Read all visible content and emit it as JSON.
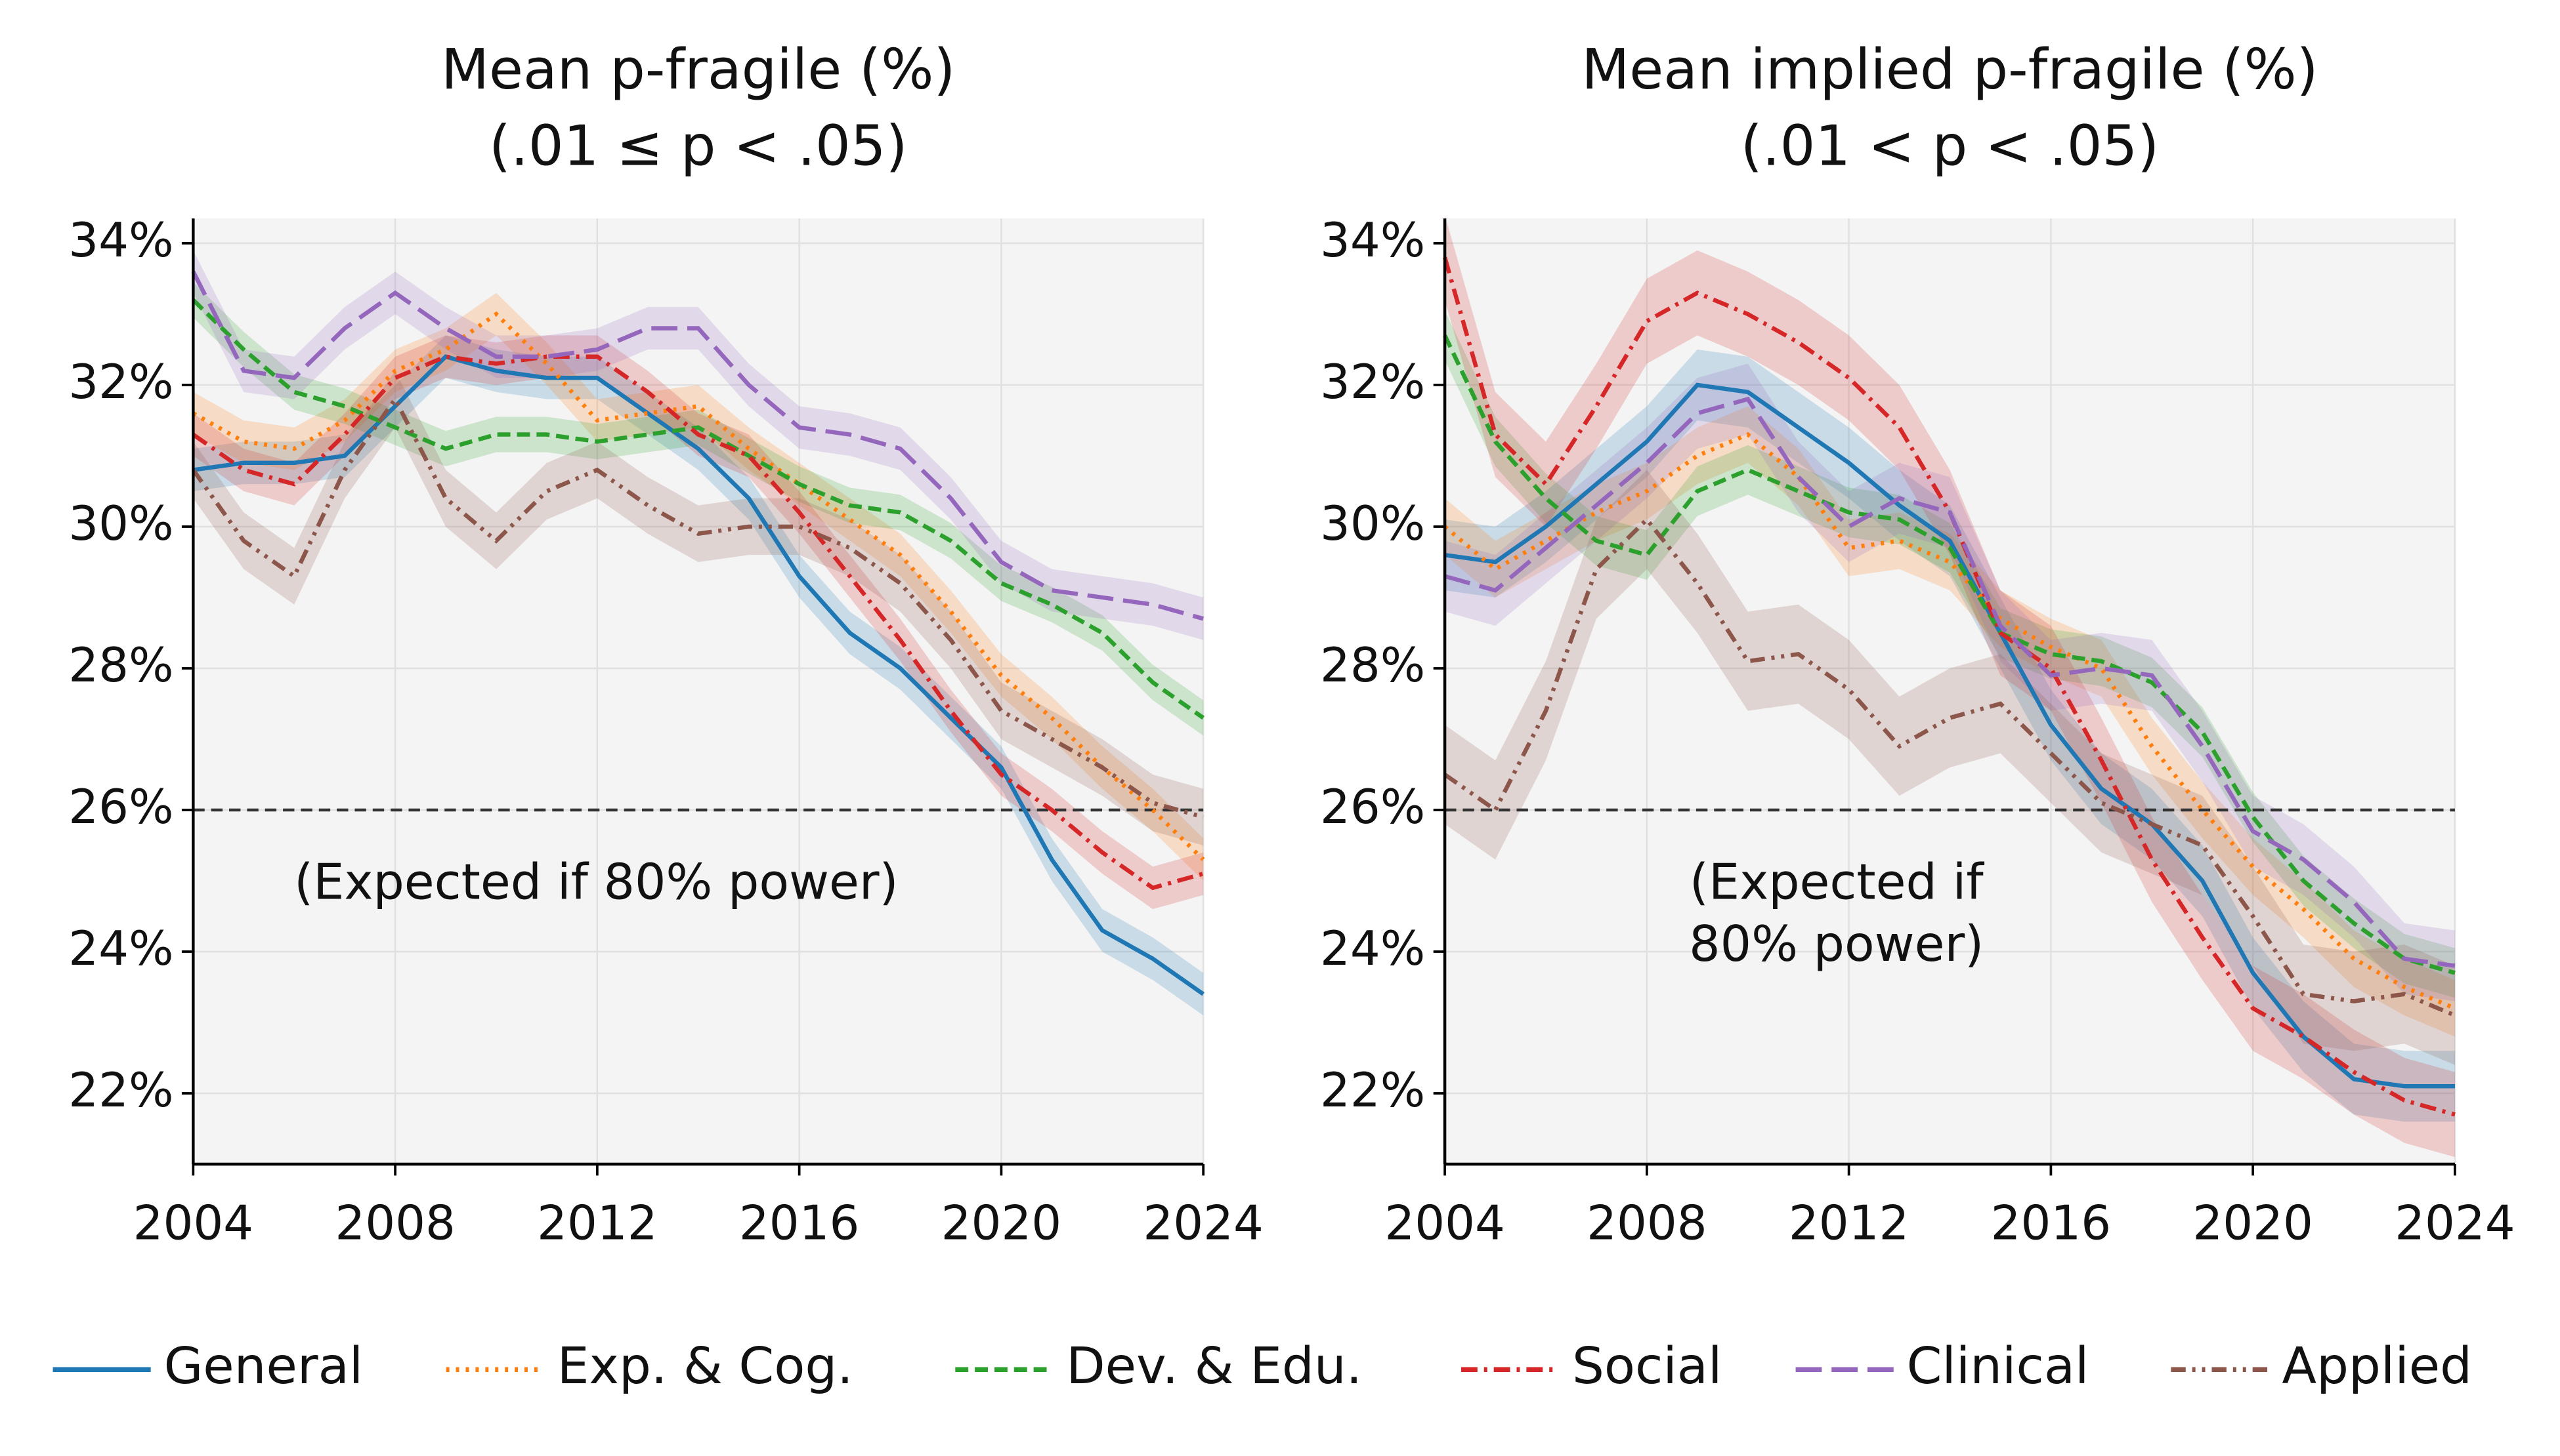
{
  "chart_data": [
    {
      "type": "line",
      "title": "Mean p-fragile (%)",
      "subtitle": "(.01 ≤ p < .05)",
      "x": [
        2004,
        2005,
        2006,
        2007,
        2008,
        2009,
        2010,
        2011,
        2012,
        2013,
        2014,
        2015,
        2016,
        2017,
        2018,
        2019,
        2020,
        2021,
        2022,
        2023,
        2024
      ],
      "xlim": [
        2004,
        2024
      ],
      "xticks": [
        2004,
        2008,
        2012,
        2016,
        2020,
        2024
      ],
      "ylim": [
        21,
        34.35
      ],
      "yticks": [
        {
          "value": 22,
          "label": "22%"
        },
        {
          "value": 24,
          "label": "24%"
        },
        {
          "value": 26,
          "label": "26%"
        },
        {
          "value": 28,
          "label": "28%"
        },
        {
          "value": 30,
          "label": "30%"
        },
        {
          "value": 32,
          "label": "32%"
        },
        {
          "value": 34,
          "label": "34%"
        }
      ],
      "grid": true,
      "hline": 26,
      "annotation": [
        "(Expected if 80% power)"
      ],
      "series": [
        {
          "name": "General",
          "color": "#1f77b4",
          "linestyle": "solid",
          "ci": 0.3,
          "values": [
            30.8,
            30.9,
            30.9,
            31.0,
            31.7,
            32.4,
            32.2,
            32.1,
            32.1,
            31.6,
            31.1,
            30.4,
            29.3,
            28.5,
            28.0,
            27.3,
            26.6,
            25.3,
            24.3,
            23.9,
            23.4
          ]
        },
        {
          "name": "Exp. & Cog.",
          "color": "#ff7f0e",
          "linestyle": "dotted",
          "ci": 0.3,
          "values": [
            31.6,
            31.2,
            31.1,
            31.5,
            32.2,
            32.5,
            33.0,
            32.3,
            31.5,
            31.6,
            31.7,
            31.1,
            30.6,
            30.1,
            29.6,
            28.8,
            27.9,
            27.3,
            26.6,
            26.0,
            25.3
          ]
        },
        {
          "name": "Dev. & Edu.",
          "color": "#2ca02c",
          "linestyle": "dashed",
          "ci": 0.25,
          "values": [
            33.2,
            32.5,
            31.9,
            31.7,
            31.4,
            31.1,
            31.3,
            31.3,
            31.2,
            31.3,
            31.4,
            31.0,
            30.6,
            30.3,
            30.2,
            29.8,
            29.2,
            28.9,
            28.5,
            27.8,
            27.3
          ]
        },
        {
          "name": "Social",
          "color": "#d62728",
          "linestyle": "dashdot",
          "ci": 0.3,
          "values": [
            31.3,
            30.8,
            30.6,
            31.3,
            32.1,
            32.4,
            32.3,
            32.4,
            32.4,
            31.9,
            31.3,
            31.0,
            30.2,
            29.3,
            28.4,
            27.4,
            26.5,
            26.0,
            25.4,
            24.9,
            25.1
          ]
        },
        {
          "name": "Clinical",
          "color": "#9467bd",
          "linestyle": "longdash",
          "ci": 0.3,
          "values": [
            33.6,
            32.2,
            32.1,
            32.8,
            33.3,
            32.8,
            32.4,
            32.4,
            32.5,
            32.8,
            32.8,
            32.0,
            31.4,
            31.3,
            31.1,
            30.4,
            29.5,
            29.1,
            29.0,
            28.9,
            28.7
          ]
        },
        {
          "name": "Applied",
          "color": "#8c564b",
          "linestyle": "dashdotdot",
          "ci": 0.4,
          "values": [
            30.8,
            29.8,
            29.3,
            30.8,
            31.8,
            30.4,
            29.8,
            30.5,
            30.8,
            30.3,
            29.9,
            30.0,
            30.0,
            29.7,
            29.2,
            28.4,
            27.4,
            27.0,
            26.6,
            26.1,
            25.9
          ]
        }
      ]
    },
    {
      "type": "line",
      "title": "Mean implied p-fragile (%)",
      "subtitle": "(.01 < p < .05)",
      "x": [
        2004,
        2005,
        2006,
        2007,
        2008,
        2009,
        2010,
        2011,
        2012,
        2013,
        2014,
        2015,
        2016,
        2017,
        2018,
        2019,
        2020,
        2021,
        2022,
        2023,
        2024
      ],
      "xlim": [
        2004,
        2024
      ],
      "xticks": [
        2004,
        2008,
        2012,
        2016,
        2020,
        2024
      ],
      "ylim": [
        21,
        34.35
      ],
      "yticks": [
        {
          "value": 22,
          "label": "22%"
        },
        {
          "value": 24,
          "label": "24%"
        },
        {
          "value": 26,
          "label": "26%"
        },
        {
          "value": 28,
          "label": "28%"
        },
        {
          "value": 30,
          "label": "30%"
        },
        {
          "value": 32,
          "label": "32%"
        },
        {
          "value": 34,
          "label": "34%"
        }
      ],
      "grid": true,
      "hline": 26,
      "annotation": [
        "(Expected if",
        "80% power)"
      ],
      "series": [
        {
          "name": "General",
          "color": "#1f77b4",
          "linestyle": "solid",
          "ci": 0.5,
          "values": [
            29.6,
            29.5,
            30.0,
            30.6,
            31.2,
            32.0,
            31.9,
            31.4,
            30.9,
            30.3,
            29.8,
            28.5,
            27.2,
            26.3,
            25.8,
            25.0,
            23.7,
            22.8,
            22.2,
            22.1,
            22.1
          ]
        },
        {
          "name": "Exp. & Cog.",
          "color": "#ff7f0e",
          "linestyle": "dotted",
          "ci": 0.4,
          "values": [
            30.0,
            29.4,
            29.8,
            30.2,
            30.5,
            31.0,
            31.3,
            30.7,
            29.7,
            29.8,
            29.5,
            28.7,
            28.3,
            28.0,
            26.9,
            26.0,
            25.2,
            24.6,
            23.9,
            23.5,
            23.2
          ]
        },
        {
          "name": "Dev. & Edu.",
          "color": "#2ca02c",
          "linestyle": "dashed",
          "ci": 0.35,
          "values": [
            32.7,
            31.2,
            30.4,
            29.8,
            29.6,
            30.5,
            30.8,
            30.5,
            30.2,
            30.1,
            29.7,
            28.5,
            28.2,
            28.1,
            27.8,
            27.1,
            25.9,
            25.0,
            24.4,
            23.9,
            23.7
          ]
        },
        {
          "name": "Social",
          "color": "#d62728",
          "linestyle": "dashdot",
          "ci": 0.6,
          "values": [
            33.8,
            31.3,
            30.6,
            31.7,
            32.9,
            33.3,
            33.0,
            32.6,
            32.1,
            31.4,
            30.2,
            28.5,
            28.0,
            26.7,
            25.3,
            24.2,
            23.2,
            22.8,
            22.3,
            21.9,
            21.7
          ]
        },
        {
          "name": "Clinical",
          "color": "#9467bd",
          "linestyle": "longdash",
          "ci": 0.5,
          "values": [
            29.3,
            29.1,
            29.7,
            30.3,
            30.9,
            31.6,
            31.8,
            30.7,
            30.0,
            30.4,
            30.2,
            28.6,
            27.9,
            28.0,
            27.9,
            26.9,
            25.7,
            25.3,
            24.7,
            23.9,
            23.8
          ]
        },
        {
          "name": "Applied",
          "color": "#8c564b",
          "linestyle": "dashdotdot",
          "ci": 0.7,
          "values": [
            26.5,
            26.0,
            27.4,
            29.4,
            30.1,
            29.2,
            28.1,
            28.2,
            27.7,
            26.9,
            27.3,
            27.5,
            26.8,
            26.1,
            25.8,
            25.5,
            24.5,
            23.4,
            23.3,
            23.4,
            23.1
          ]
        }
      ]
    }
  ]
}
